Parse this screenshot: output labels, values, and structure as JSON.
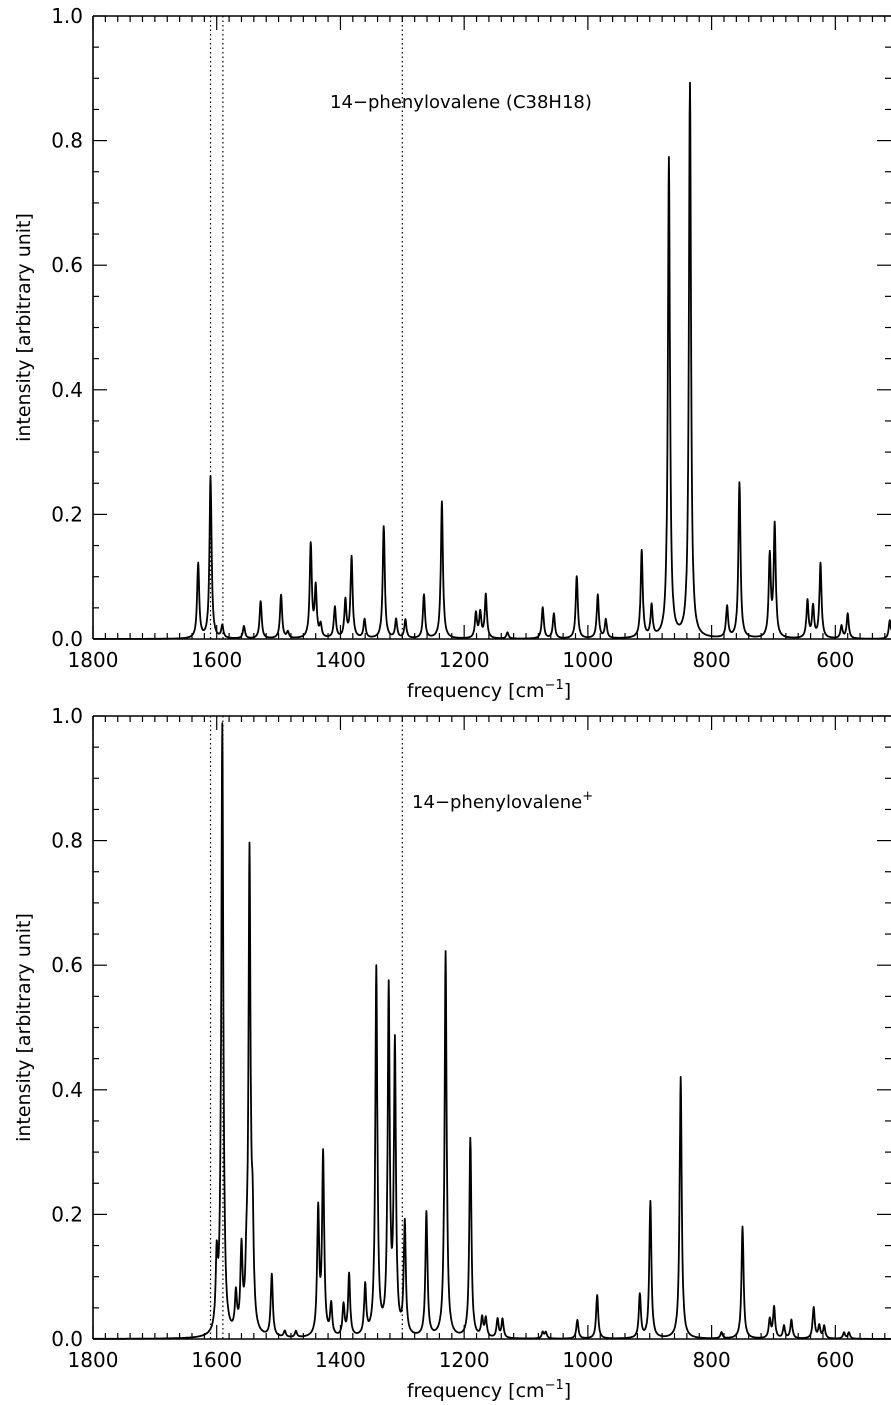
{
  "chart_data": [
    {
      "type": "line",
      "annotation": "14−phenylovalene (C38H18)",
      "annotation_superscript": "",
      "xlabel": "frequency [cm",
      "xlabel_sup": "−1",
      "xlabel_end": "]",
      "ylabel": "intensity [arbitrary unit]",
      "xlim": [
        1800,
        510
      ],
      "ylim": [
        0.0,
        1.0
      ],
      "x_reversed": true,
      "xticks": [
        "1800",
        "1600",
        "1400",
        "1200",
        "1000",
        "800",
        "600"
      ],
      "yticks": [
        "0.0",
        "0.2",
        "0.4",
        "0.6",
        "0.8",
        "1.0"
      ],
      "vlines_dotted": [
        1610,
        1590,
        1300
      ],
      "linewidth_cm": 4,
      "peaks": [
        [
          1630,
          0.12
        ],
        [
          1610,
          0.26
        ],
        [
          1591,
          0.02
        ],
        [
          1556,
          0.02
        ],
        [
          1529,
          0.06
        ],
        [
          1496,
          0.07
        ],
        [
          1485,
          0.01
        ],
        [
          1448,
          0.15
        ],
        [
          1440,
          0.08
        ],
        [
          1432,
          0.02
        ],
        [
          1409,
          0.05
        ],
        [
          1392,
          0.06
        ],
        [
          1382,
          0.13
        ],
        [
          1361,
          0.03
        ],
        [
          1330,
          0.18
        ],
        [
          1310,
          0.03
        ],
        [
          1295,
          0.03
        ],
        [
          1265,
          0.07
        ],
        [
          1236,
          0.22
        ],
        [
          1181,
          0.04
        ],
        [
          1174,
          0.04
        ],
        [
          1165,
          0.07
        ],
        [
          1130,
          0.01
        ],
        [
          1073,
          0.05
        ],
        [
          1055,
          0.04
        ],
        [
          1018,
          0.1
        ],
        [
          984,
          0.07
        ],
        [
          971,
          0.03
        ],
        [
          913,
          0.14
        ],
        [
          897,
          0.05
        ],
        [
          869,
          0.77
        ],
        [
          835,
          0.89
        ],
        [
          775,
          0.05
        ],
        [
          755,
          0.25
        ],
        [
          706,
          0.13
        ],
        [
          698,
          0.18
        ],
        [
          645,
          0.06
        ],
        [
          636,
          0.05
        ],
        [
          624,
          0.12
        ],
        [
          590,
          0.02
        ],
        [
          580,
          0.04
        ],
        [
          512,
          0.03
        ]
      ]
    },
    {
      "type": "line",
      "annotation": "14−phenylovalene",
      "annotation_superscript": "+",
      "xlabel": "frequency [cm",
      "xlabel_sup": "−1",
      "xlabel_end": "]",
      "ylabel": "intensity [arbitrary unit]",
      "xlim": [
        1800,
        510
      ],
      "ylim": [
        0.0,
        1.0
      ],
      "x_reversed": true,
      "xticks": [
        "1800",
        "1600",
        "1400",
        "1200",
        "1000",
        "800",
        "600"
      ],
      "yticks": [
        "0.0",
        "0.2",
        "0.4",
        "0.6",
        "0.8",
        "1.0"
      ],
      "vlines_dotted": [
        1610,
        1590,
        1300
      ],
      "linewidth_cm": 4,
      "peaks": [
        [
          1600,
          0.11
        ],
        [
          1591,
          0.98
        ],
        [
          1560,
          0.13
        ],
        [
          1552,
          0.07
        ],
        [
          1547,
          0.76
        ],
        [
          1542,
          0.15
        ],
        [
          1569,
          0.06
        ],
        [
          1511,
          0.1
        ],
        [
          1490,
          0.01
        ],
        [
          1472,
          0.01
        ],
        [
          1436,
          0.2
        ],
        [
          1428,
          0.29
        ],
        [
          1415,
          0.05
        ],
        [
          1395,
          0.05
        ],
        [
          1386,
          0.1
        ],
        [
          1360,
          0.08
        ],
        [
          1342,
          0.59
        ],
        [
          1322,
          0.55
        ],
        [
          1312,
          0.46
        ],
        [
          1296,
          0.18
        ],
        [
          1261,
          0.2
        ],
        [
          1230,
          0.62
        ],
        [
          1190,
          0.32
        ],
        [
          1171,
          0.03
        ],
        [
          1165,
          0.03
        ],
        [
          1146,
          0.03
        ],
        [
          1138,
          0.03
        ],
        [
          1073,
          0.01
        ],
        [
          1068,
          0.01
        ],
        [
          1017,
          0.03
        ],
        [
          985,
          0.07
        ],
        [
          916,
          0.07
        ],
        [
          899,
          0.22
        ],
        [
          850,
          0.42
        ],
        [
          784,
          0.01
        ],
        [
          750,
          0.18
        ],
        [
          706,
          0.03
        ],
        [
          699,
          0.05
        ],
        [
          683,
          0.02
        ],
        [
          671,
          0.03
        ],
        [
          635,
          0.05
        ],
        [
          626,
          0.02
        ],
        [
          618,
          0.02
        ],
        [
          586,
          0.01
        ],
        [
          578,
          0.01
        ]
      ]
    }
  ]
}
